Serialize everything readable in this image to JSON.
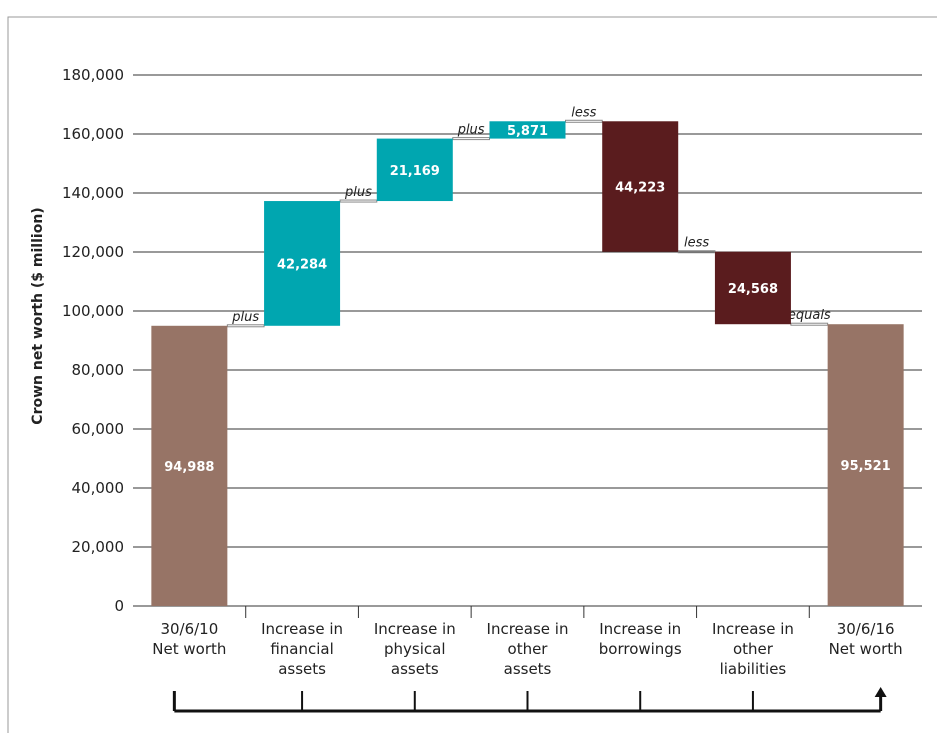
{
  "chart_data": {
    "type": "bar",
    "subtype": "waterfall",
    "title": "",
    "ylabel": "Crown net worth ($ million)",
    "xlabel": "",
    "ylim": [
      0,
      180000
    ],
    "yticks": [
      0,
      20000,
      40000,
      60000,
      80000,
      100000,
      120000,
      140000,
      160000,
      180000
    ],
    "ytick_labels": [
      "0",
      "20,000",
      "40,000",
      "60,000",
      "80,000",
      "100,000",
      "120,000",
      "140,000",
      "160,000",
      "180,000"
    ],
    "grid": true,
    "categories": [
      [
        "30/6/10",
        "Net worth"
      ],
      [
        "Increase in",
        "financial",
        "assets"
      ],
      [
        "Increase in",
        "physical",
        "assets"
      ],
      [
        "Increase in",
        "other",
        "assets"
      ],
      [
        "Increase in",
        "borrowings"
      ],
      [
        "Increase in",
        "other",
        "liabilities"
      ],
      [
        "30/6/16",
        "Net worth"
      ]
    ],
    "bars": [
      {
        "kind": "total",
        "start": 0,
        "end": 94988,
        "label": "94,988"
      },
      {
        "kind": "increase",
        "start": 94988,
        "end": 137272,
        "label": "42,284"
      },
      {
        "kind": "increase",
        "start": 137272,
        "end": 158441,
        "label": "21,169"
      },
      {
        "kind": "increase",
        "start": 158441,
        "end": 164312,
        "label": "5,871"
      },
      {
        "kind": "decrease",
        "start": 164312,
        "end": 120089,
        "label": "44,223"
      },
      {
        "kind": "decrease",
        "start": 120089,
        "end": 95521,
        "label": "24,568"
      },
      {
        "kind": "total",
        "start": 0,
        "end": 95521,
        "label": "95,521"
      }
    ],
    "connector_labels": [
      "plus",
      "plus",
      "plus",
      "less",
      "less",
      "equals"
    ],
    "colors": {
      "total": "#977466",
      "increase": "#00a6b0",
      "decrease": "#5a1c1e",
      "grid": "#333333",
      "connector": "#888888"
    }
  }
}
